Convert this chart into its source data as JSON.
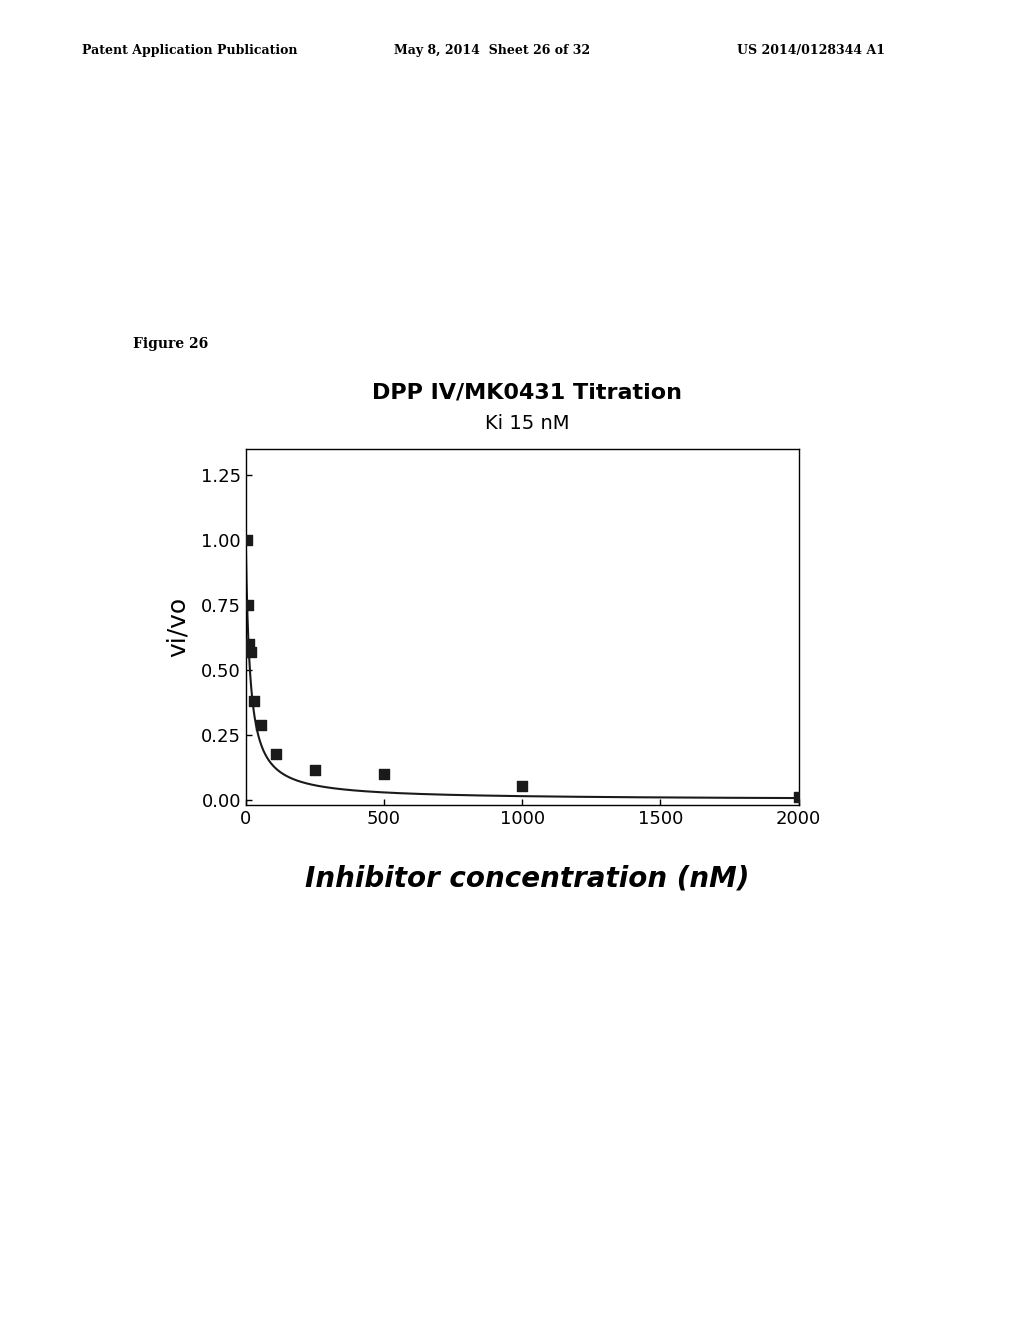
{
  "title_line1": "DPP IV/MK0431 Titration",
  "title_line2": "Ki 15 nM",
  "xlabel": "Inhibitor concentration (nM)",
  "ylabel": "vi/vo",
  "figure_label": "Figure 26",
  "header_left": "Patent Application Publication",
  "header_center": "May 8, 2014  Sheet 26 of 32",
  "header_right": "US 2014/0128344 A1",
  "xlim": [
    0,
    2000
  ],
  "ylim": [
    -0.02,
    1.35
  ],
  "xticks": [
    0,
    500,
    1000,
    1500,
    2000
  ],
  "yticks": [
    0.0,
    0.25,
    0.5,
    0.75,
    1.0,
    1.25
  ],
  "data_points_x": [
    3,
    7,
    12,
    18,
    30,
    55,
    110,
    250,
    500,
    1000,
    2000
  ],
  "data_points_y": [
    1.0,
    0.75,
    0.6,
    0.57,
    0.38,
    0.29,
    0.175,
    0.115,
    0.1,
    0.055,
    0.01
  ],
  "Ki": 15,
  "background_color": "#ffffff",
  "plot_bg_color": "#ffffff",
  "marker_color": "#1a1a1a",
  "line_color": "#1a1a1a",
  "title_fontsize": 16,
  "title2_fontsize": 14,
  "axis_label_fontsize": 18,
  "tick_fontsize": 13,
  "figure_label_fontsize": 10,
  "header_fontsize": 9
}
